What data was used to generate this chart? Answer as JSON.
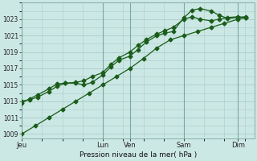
{
  "bg_color": "#cce8e4",
  "grid_color": "#aaccca",
  "line_color": "#1a5c1a",
  "xlabel": "Pression niveau de la mer( hPa )",
  "ylim": [
    1008.5,
    1025.0
  ],
  "yticks": [
    1009,
    1011,
    1013,
    1015,
    1017,
    1019,
    1021,
    1023
  ],
  "x_day_labels": [
    "Jeu",
    "Lun",
    "Ven",
    "Sam",
    "Dim"
  ],
  "x_day_positions": [
    0.0,
    3.0,
    4.0,
    6.0,
    8.0
  ],
  "xlim": [
    0.0,
    8.6
  ],
  "line1_x": [
    0.0,
    0.3,
    0.6,
    1.0,
    1.3,
    1.6,
    2.0,
    2.3,
    2.6,
    3.0,
    3.3,
    3.6,
    4.0,
    4.3,
    4.6,
    5.0,
    5.3,
    5.6,
    6.0,
    6.3,
    6.6,
    7.0,
    7.3,
    7.6,
    8.0,
    8.3
  ],
  "line1_y": [
    1012.8,
    1013.3,
    1013.8,
    1014.5,
    1015.1,
    1015.2,
    1015.2,
    1015.0,
    1015.3,
    1016.2,
    1017.2,
    1018.0,
    1018.5,
    1019.3,
    1020.2,
    1021.0,
    1021.3,
    1021.5,
    1023.2,
    1024.1,
    1024.3,
    1024.0,
    1023.5,
    1023.1,
    1023.2,
    1023.3
  ],
  "line2_x": [
    0.0,
    0.3,
    0.6,
    1.0,
    1.3,
    1.6,
    2.0,
    2.3,
    2.6,
    3.0,
    3.3,
    3.6,
    4.0,
    4.3,
    4.6,
    5.0,
    5.3,
    5.6,
    6.0,
    6.3,
    6.6,
    7.0,
    7.3,
    7.6,
    8.0,
    8.3
  ],
  "line2_y": [
    1013.0,
    1013.2,
    1013.5,
    1014.2,
    1014.8,
    1015.2,
    1015.3,
    1015.5,
    1016.0,
    1016.5,
    1017.5,
    1018.3,
    1019.0,
    1019.8,
    1020.5,
    1021.2,
    1021.6,
    1022.0,
    1023.0,
    1023.3,
    1023.0,
    1022.8,
    1023.0,
    1023.2,
    1023.3,
    1023.2
  ],
  "line3_x": [
    0.0,
    0.5,
    1.0,
    1.5,
    2.0,
    2.5,
    3.0,
    3.5,
    4.0,
    4.5,
    5.0,
    5.5,
    6.0,
    6.5,
    7.0,
    7.5,
    8.0,
    8.3
  ],
  "line3_y": [
    1009.0,
    1010.0,
    1011.0,
    1012.0,
    1013.0,
    1014.0,
    1015.0,
    1016.0,
    1017.0,
    1018.2,
    1019.5,
    1020.5,
    1021.0,
    1021.5,
    1022.0,
    1022.5,
    1023.0,
    1023.2
  ],
  "figsize": [
    3.2,
    2.0
  ],
  "dpi": 100
}
